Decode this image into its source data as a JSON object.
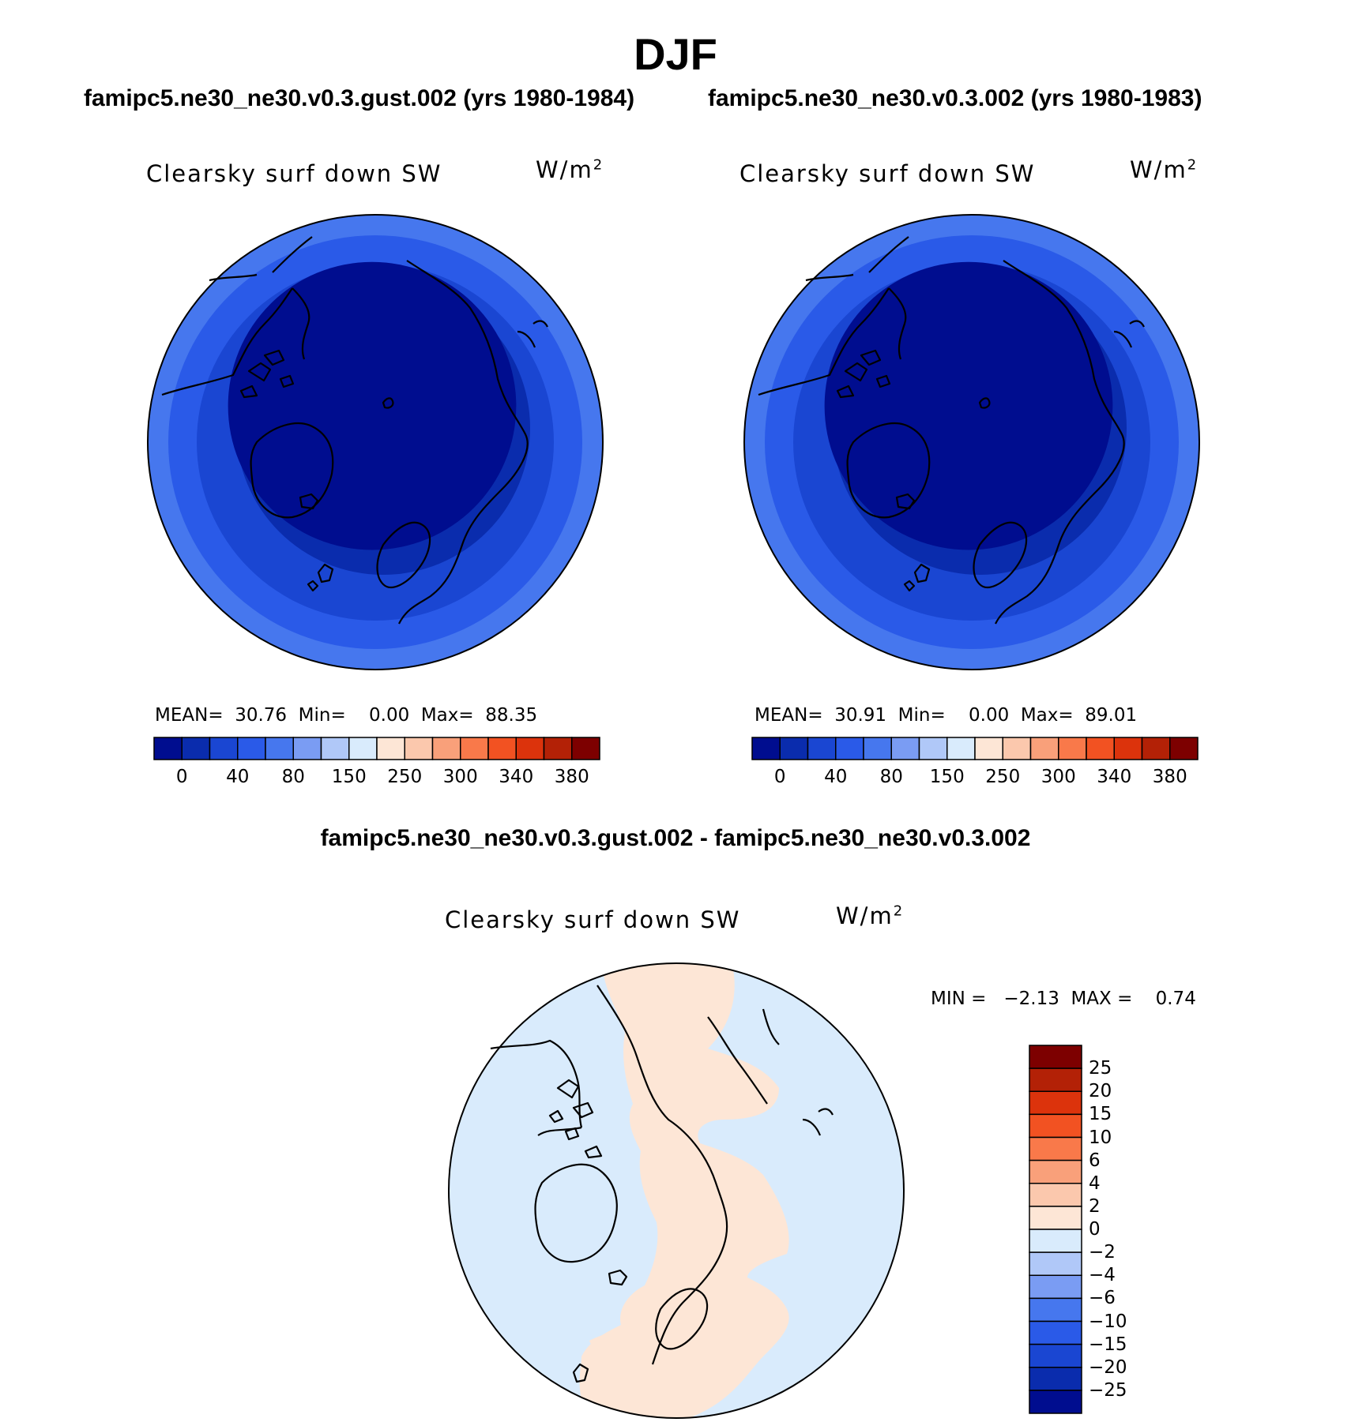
{
  "main_title": "DJF",
  "panels": [
    {
      "case_title": "famipc5.ne30_ne30.v0.3.gust.002 (yrs 1980-1984)",
      "variable": "Clearsky surf down SW",
      "units_base": "W/m",
      "units_exp": "2",
      "stats_text": "MEAN=  30.76  Min=    0.00  Max=  88.35",
      "mean": 30.76,
      "min": 0.0,
      "max": 88.35
    },
    {
      "case_title": "famipc5.ne30_ne30.v0.3.002 (yrs 1980-1983)",
      "variable": "Clearsky surf down SW",
      "units_base": "W/m",
      "units_exp": "2",
      "stats_text": "MEAN=  30.91  Min=    0.00  Max=  89.01",
      "mean": 30.91,
      "min": 0.0,
      "max": 89.01
    }
  ],
  "diff_panel": {
    "title": "famipc5.ne30_ne30.v0.3.gust.002 - famipc5.ne30_ne30.v0.3.002",
    "variable": "Clearsky surf down SW",
    "units_base": "W/m",
    "units_exp": "2",
    "stats_text": "MIN =   −2.13  MAX =    0.74",
    "min": -2.13,
    "max": 0.74
  },
  "colorbar_abs": {
    "colors": [
      "#000d8f",
      "#0a2cad",
      "#1a46d2",
      "#2a5ae8",
      "#4677ee",
      "#7a9cf3",
      "#b0c8f8",
      "#d9ebfc",
      "#fde6d6",
      "#fbc8ad",
      "#f9a07a",
      "#f9794a",
      "#f25222",
      "#dc330c",
      "#b32106",
      "#7d0000"
    ],
    "tick_labels": [
      "0",
      "40",
      "80",
      "150",
      "250",
      "300",
      "340",
      "380"
    ]
  },
  "colorbar_diff": {
    "colors_top_to_bottom": [
      "#7d0000",
      "#b32106",
      "#dc330c",
      "#f25222",
      "#f9794a",
      "#f9a07a",
      "#fbc8ad",
      "#fde6d6",
      "#d9ebfc",
      "#b0c8f8",
      "#7a9cf3",
      "#4677ee",
      "#2a5ae8",
      "#1a46d2",
      "#0a2cad",
      "#000d8f"
    ],
    "tick_labels": [
      "25",
      "20",
      "15",
      "10",
      "6",
      "4",
      "2",
      "0",
      "−2",
      "−4",
      "−6",
      "−10",
      "−15",
      "−20",
      "−25"
    ]
  },
  "map_colors": {
    "ring_outer": "#4677ee",
    "ring_2": "#2a5ae8",
    "ring_3": "#1a46d2",
    "ring_4": "#0a2cad",
    "core": "#000d8f",
    "diff_negative": "#d9ebfc",
    "diff_positive": "#fde6d6"
  }
}
